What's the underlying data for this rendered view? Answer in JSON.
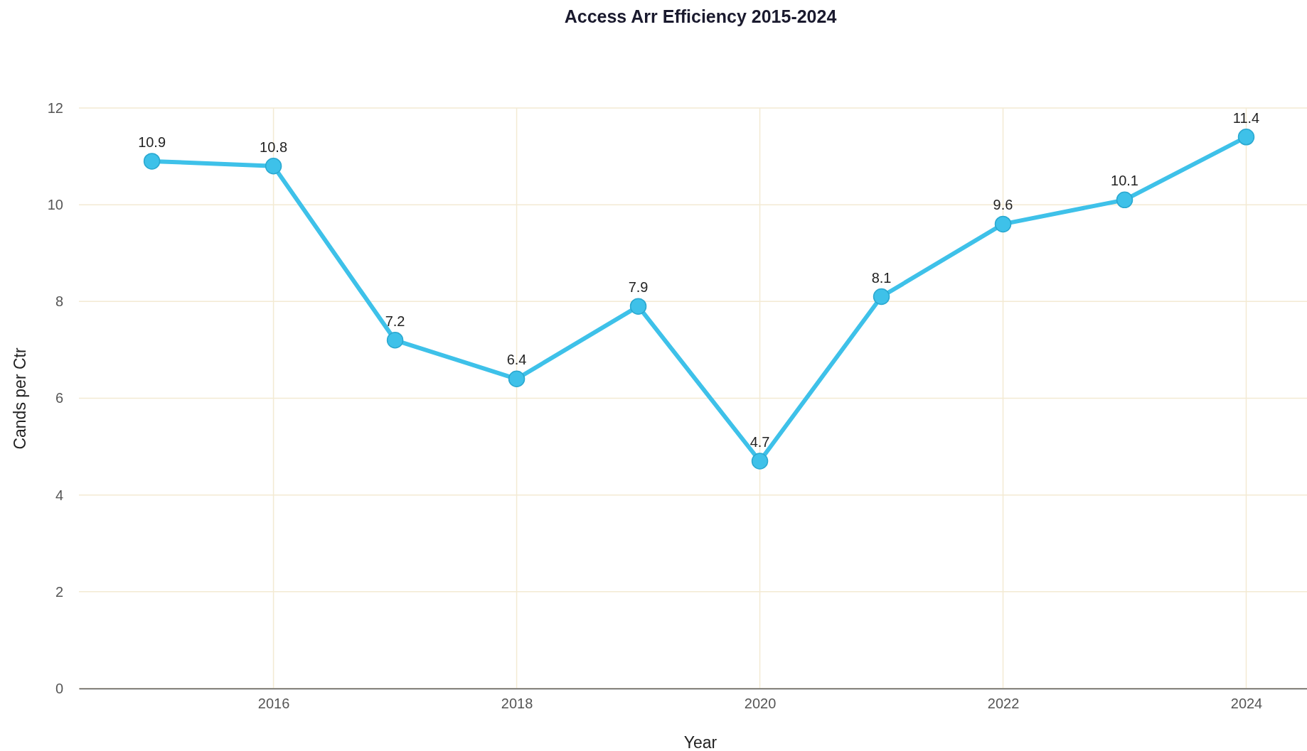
{
  "chart_data": {
    "type": "line",
    "title": "Access Arr Efficiency 2015-2024",
    "xlabel": "Year",
    "ylabel": "Cands per Ctr",
    "x": [
      2015,
      2016,
      2017,
      2018,
      2019,
      2020,
      2021,
      2022,
      2023,
      2024
    ],
    "series": [
      {
        "color": "#3ec1e9",
        "values": [
          10.9,
          10.8,
          7.2,
          6.4,
          7.9,
          4.7,
          8.1,
          9.6,
          10.1,
          11.4
        ]
      }
    ],
    "xlim": [
      2014.4,
      2024.5
    ],
    "xticks": [
      2016,
      2018,
      2020,
      2022,
      2024
    ],
    "ylim": [
      0,
      12
    ],
    "yticks": [
      0,
      2,
      4,
      6,
      8,
      10,
      12
    ],
    "grid": true,
    "marker": "circle",
    "line_style": "solid",
    "data_labels": true
  }
}
